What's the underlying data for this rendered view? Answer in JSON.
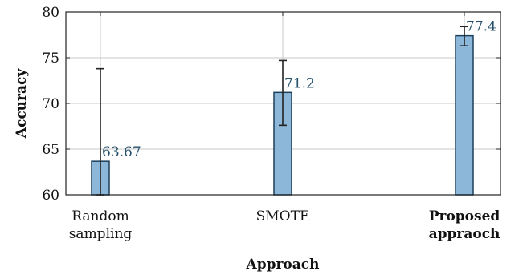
{
  "chart_data": {
    "type": "bar",
    "xlabel": "Approach",
    "ylabel": "Accuracy",
    "ylim": [
      60,
      80
    ],
    "yticks": [
      60,
      65,
      70,
      75,
      80
    ],
    "grid": true,
    "categories": [
      {
        "lines": [
          "Random",
          "sampling"
        ],
        "bold": false
      },
      {
        "lines": [
          "SMOTE"
        ],
        "bold": false
      },
      {
        "lines": [
          "Proposed",
          "appraoch"
        ],
        "bold": true
      }
    ],
    "values": [
      63.67,
      71.2,
      77.4
    ],
    "value_labels": [
      "63.67",
      "71.2",
      "77.4"
    ],
    "errors": [
      {
        "low": 60.0,
        "high": 73.8
      },
      {
        "low": 67.6,
        "high": 74.7
      },
      {
        "low": 76.3,
        "high": 78.4
      }
    ],
    "colors": {
      "bar_fill": "#8db7d9",
      "bar_stroke": "#1c3f5a",
      "label": "#24506b"
    }
  }
}
